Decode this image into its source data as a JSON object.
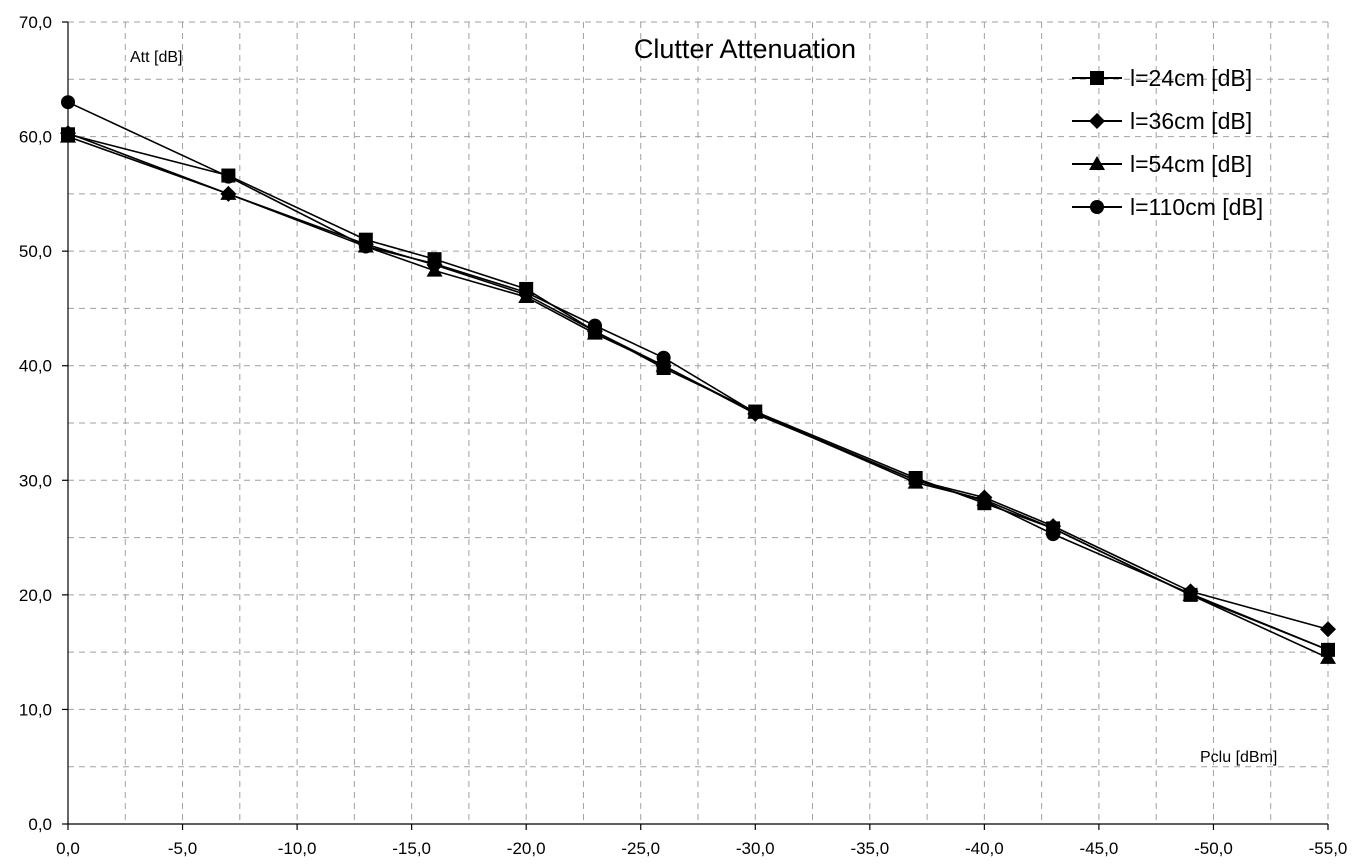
{
  "chart_data": {
    "type": "line",
    "title": "Clutter Attenuation",
    "xlabel": "Pclu [dBm]",
    "ylabel": "Att [dB]",
    "xlim": [
      0,
      -55
    ],
    "ylim": [
      0,
      70
    ],
    "x_ticks": [
      "0,0",
      "-5,0",
      "-10,0",
      "-15,0",
      "-20,0",
      "-25,0",
      "-30,0",
      "-35,0",
      "-40,0",
      "-45,0",
      "-50,0",
      "-55,0"
    ],
    "y_ticks": [
      "0,0",
      "10,0",
      "20,0",
      "30,0",
      "40,0",
      "50,0",
      "60,0",
      "70,0"
    ],
    "grid": true,
    "legend_position": "top-right",
    "x": [
      0,
      -7,
      -13,
      -16,
      -20,
      -23,
      -26,
      -30,
      -37,
      -40,
      -43,
      -49,
      -55
    ],
    "series": [
      {
        "name": "l=24cm [dB]",
        "marker": "square",
        "values": [
          60.2,
          56.6,
          51.0,
          49.3,
          46.7,
          43.0,
          39.8,
          36.0,
          30.2,
          28.0,
          25.8,
          20.0,
          15.2
        ]
      },
      {
        "name": "l=36cm [dB]",
        "marker": "diamond",
        "values": [
          60.3,
          55.0,
          50.6,
          48.8,
          46.2,
          43.0,
          40.0,
          35.8,
          30.0,
          28.5,
          26.0,
          20.3,
          17.0
        ]
      },
      {
        "name": "l=54cm [dB]",
        "marker": "triangle",
        "values": [
          60.0,
          55.0,
          50.4,
          48.3,
          46.0,
          42.8,
          40.0,
          35.9,
          29.8,
          28.3,
          25.8,
          20.0,
          14.5
        ]
      },
      {
        "name": "l=110cm [dB]",
        "marker": "circle",
        "values": [
          63.0,
          56.5,
          50.4,
          48.9,
          46.4,
          43.5,
          40.7,
          35.9,
          30.0,
          28.2,
          25.3,
          20.1,
          15.2
        ]
      }
    ]
  }
}
